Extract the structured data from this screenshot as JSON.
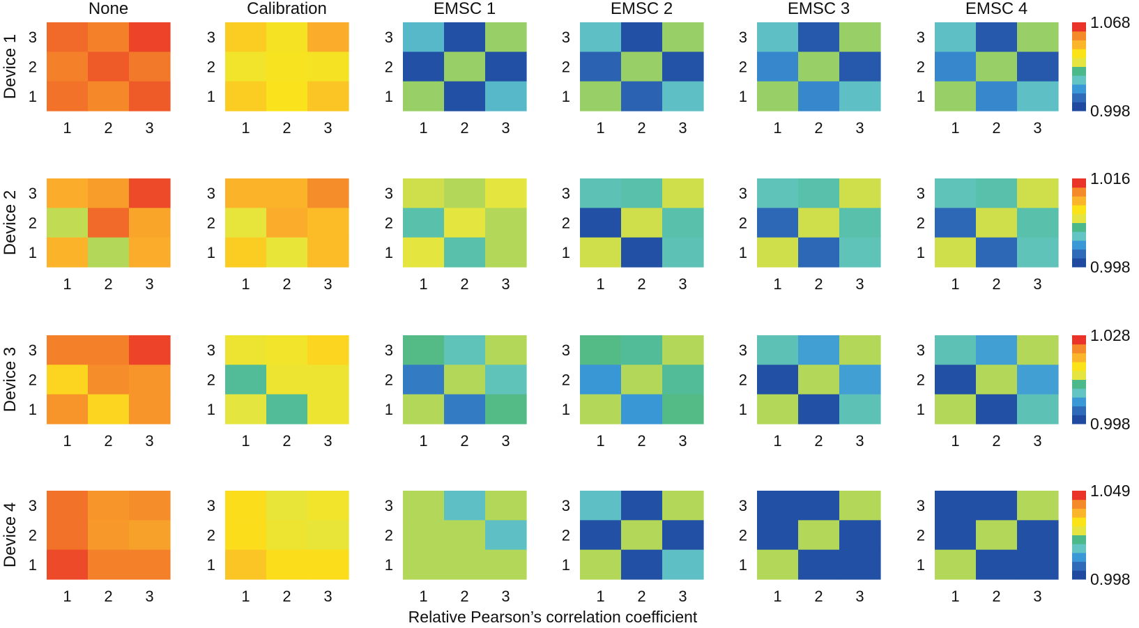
{
  "chart_data": {
    "type": "heatmap",
    "xlabel": "Relative Pearson’s correlation coefficient",
    "columns": [
      "None",
      "Calibration",
      "EMSC 1",
      "EMSC 2",
      "EMSC 3",
      "EMSC 4"
    ],
    "rows": [
      "Device 1",
      "Device 2",
      "Device 3",
      "Device 4"
    ],
    "x_ticks": [
      "1",
      "2",
      "3"
    ],
    "y_ticks": [
      "1",
      "2",
      "3"
    ],
    "colorbar": {
      "colors_low_to_high": [
        "#1f4aa0",
        "#2f6bb8",
        "#3a98d6",
        "#63c5c3",
        "#4cb98a",
        "#e4e541",
        "#fbe31a",
        "#fbb52a",
        "#f58a2a",
        "#ea3329"
      ],
      "scales": [
        {
          "row": "Device 1",
          "min": 0.998,
          "max": 1.068,
          "min_label": "0.998",
          "max_label": "1.068"
        },
        {
          "row": "Device 2",
          "min": 0.998,
          "max": 1.016,
          "min_label": "0.998",
          "max_label": "1.016"
        },
        {
          "row": "Device 3",
          "min": 0.998,
          "max": 1.028,
          "min_label": "0.998",
          "max_label": "1.028"
        },
        {
          "row": "Device 4",
          "min": 0.998,
          "max": 1.049,
          "min_label": "0.998",
          "max_label": "1.049"
        }
      ]
    },
    "cells_note": "matrices listed top row (y=3) first, columns x=1..3, values as colour level 0..1 on each row's colorbar",
    "matrices": [
      [
        [
          [
            0.93,
            0.9,
            0.98
          ],
          [
            0.9,
            0.95,
            0.91
          ],
          [
            0.92,
            0.89,
            0.95
          ]
        ],
        [
          [
            0.72,
            0.64,
            0.8
          ],
          [
            0.62,
            0.65,
            0.64
          ],
          [
            0.72,
            0.66,
            0.74
          ]
        ],
        [
          [
            0.3,
            0.02,
            0.5
          ],
          [
            0.02,
            0.5,
            0.02
          ],
          [
            0.5,
            0.02,
            0.3
          ]
        ],
        [
          [
            0.32,
            0.02,
            0.5
          ],
          [
            0.08,
            0.5,
            0.03
          ],
          [
            0.5,
            0.08,
            0.32
          ]
        ],
        [
          [
            0.32,
            0.05,
            0.5
          ],
          [
            0.18,
            0.5,
            0.05
          ],
          [
            0.5,
            0.18,
            0.32
          ]
        ],
        [
          [
            0.32,
            0.05,
            0.5
          ],
          [
            0.18,
            0.5,
            0.05
          ],
          [
            0.5,
            0.18,
            0.32
          ]
        ]
      ],
      [
        [
          [
            0.8,
            0.84,
            0.97
          ],
          [
            0.53,
            0.93,
            0.82
          ],
          [
            0.78,
            0.52,
            0.8
          ]
        ],
        [
          [
            0.78,
            0.78,
            0.88
          ],
          [
            0.57,
            0.8,
            0.76
          ],
          [
            0.72,
            0.58,
            0.76
          ]
        ],
        [
          [
            0.54,
            0.52,
            0.56
          ],
          [
            0.38,
            0.56,
            0.52
          ],
          [
            0.56,
            0.38,
            0.52
          ]
        ],
        [
          [
            0.36,
            0.38,
            0.54
          ],
          [
            0.02,
            0.54,
            0.38
          ],
          [
            0.54,
            0.02,
            0.36
          ]
        ],
        [
          [
            0.35,
            0.38,
            0.54
          ],
          [
            0.1,
            0.54,
            0.38
          ],
          [
            0.54,
            0.1,
            0.35
          ]
        ],
        [
          [
            0.35,
            0.38,
            0.54
          ],
          [
            0.1,
            0.54,
            0.38
          ],
          [
            0.54,
            0.1,
            0.35
          ]
        ]
      ],
      [
        [
          [
            0.9,
            0.9,
            0.98
          ],
          [
            0.7,
            0.88,
            0.86
          ],
          [
            0.86,
            0.7,
            0.86
          ]
        ],
        [
          [
            0.6,
            0.62,
            0.7
          ],
          [
            0.42,
            0.6,
            0.6
          ],
          [
            0.56,
            0.42,
            0.6
          ]
        ],
        [
          [
            0.45,
            0.35,
            0.52
          ],
          [
            0.15,
            0.52,
            0.35
          ],
          [
            0.52,
            0.15,
            0.45
          ]
        ],
        [
          [
            0.45,
            0.42,
            0.52
          ],
          [
            0.22,
            0.52,
            0.42
          ],
          [
            0.52,
            0.22,
            0.45
          ]
        ],
        [
          [
            0.36,
            0.24,
            0.52
          ],
          [
            0.02,
            0.52,
            0.24
          ],
          [
            0.52,
            0.02,
            0.36
          ]
        ],
        [
          [
            0.36,
            0.24,
            0.52
          ],
          [
            0.02,
            0.52,
            0.24
          ],
          [
            0.52,
            0.02,
            0.36
          ]
        ]
      ],
      [
        [
          [
            0.92,
            0.86,
            0.88
          ],
          [
            0.92,
            0.85,
            0.83
          ],
          [
            0.97,
            0.9,
            0.9
          ]
        ],
        [
          [
            0.68,
            0.58,
            0.62
          ],
          [
            0.68,
            0.6,
            0.58
          ],
          [
            0.74,
            0.68,
            0.68
          ]
        ],
        [
          [
            0.52,
            0.32,
            0.52
          ],
          [
            0.52,
            0.52,
            0.32
          ],
          [
            0.52,
            0.52,
            0.52
          ]
        ],
        [
          [
            0.32,
            0.02,
            0.52
          ],
          [
            0.02,
            0.52,
            0.02
          ],
          [
            0.52,
            0.02,
            0.32
          ]
        ],
        [
          [
            0.02,
            0.02,
            0.52
          ],
          [
            0.02,
            0.52,
            0.02
          ],
          [
            0.52,
            0.02,
            0.02
          ]
        ],
        [
          [
            0.02,
            0.02,
            0.52
          ],
          [
            0.02,
            0.52,
            0.02
          ],
          [
            0.52,
            0.02,
            0.02
          ]
        ]
      ]
    ]
  }
}
